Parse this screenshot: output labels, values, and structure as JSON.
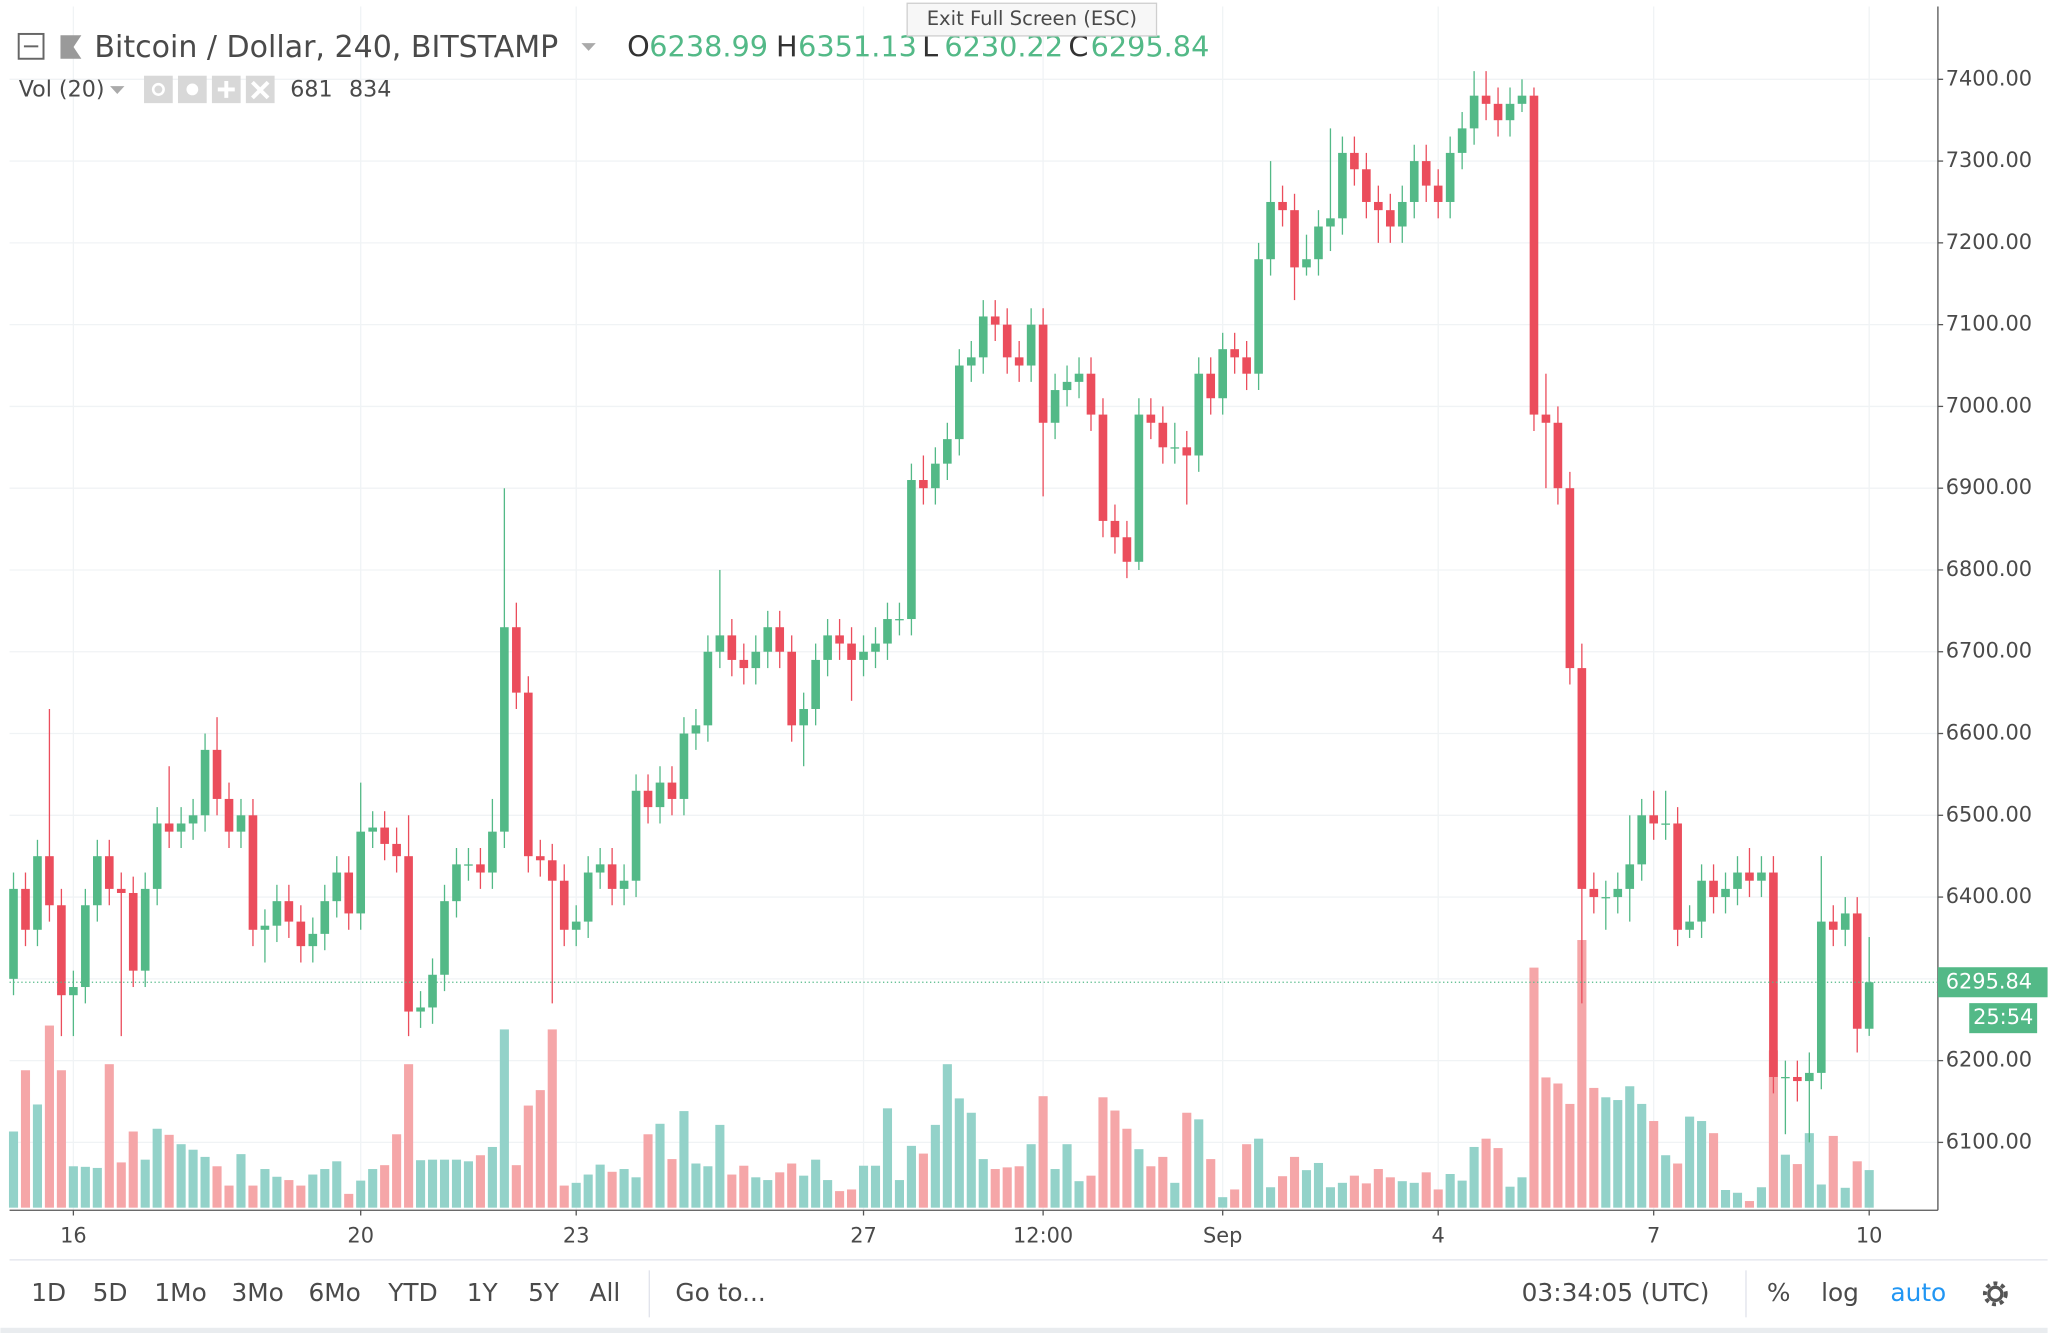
{
  "header": {
    "title": "Bitcoin / Dollar, 240, BITSTAMP",
    "tooltip": "Exit Full Screen (ESC)",
    "ohlc": [
      {
        "key": "O",
        "value": "6238.99"
      },
      {
        "key": "H",
        "value": "6351.13"
      },
      {
        "key": "L",
        "value": "6230.22"
      },
      {
        "key": "C",
        "value": "6295.84"
      }
    ],
    "volume_title": "Vol (20)"
  },
  "chart_data": {
    "type": "candlestick",
    "up_color": "#53b987",
    "down_color": "#eb4d5c",
    "volume_up_color": "#93d2c9",
    "volume_down_color": "#f5a6a8",
    "grid": true,
    "xlim": [
      -0.33,
      160.74
    ],
    "xticks": [
      {
        "value": 5,
        "label": "16"
      },
      {
        "value": 29,
        "label": "20"
      },
      {
        "value": 47,
        "label": "23"
      },
      {
        "value": 71,
        "label": "27"
      },
      {
        "value": 86,
        "label": "12:00"
      },
      {
        "value": 101,
        "label": "Sep"
      },
      {
        "value": 119,
        "label": "4"
      },
      {
        "value": 137,
        "label": "7"
      },
      {
        "value": 155,
        "label": "10"
      }
    ],
    "ylim": [
      6017,
      7489
    ],
    "yticks": [
      {
        "value": 6100,
        "label": "6100.00"
      },
      {
        "value": 6200,
        "label": "6200.00"
      },
      {
        "value": 6300,
        "label": "6300.00"
      },
      {
        "value": 6400,
        "label": "6400.00"
      },
      {
        "value": 6500,
        "label": "6500.00"
      },
      {
        "value": 6600,
        "label": "6600.00"
      },
      {
        "value": 6700,
        "label": "6700.00"
      },
      {
        "value": 6800,
        "label": "6800.00"
      },
      {
        "value": 6900,
        "label": "6900.00"
      },
      {
        "value": 7000,
        "label": "7000.00"
      },
      {
        "value": 7100,
        "label": "7100.00"
      },
      {
        "value": 7200,
        "label": "7200.00"
      },
      {
        "value": 7300,
        "label": "7300.00"
      },
      {
        "value": 7400,
        "label": "7400.00"
      }
    ],
    "open": [
      6300,
      6410,
      6360,
      6450,
      6390,
      6280,
      6290,
      6390,
      6450,
      6410,
      6405,
      6310,
      6410,
      6490,
      6480,
      6490,
      6500,
      6580,
      6520,
      6480,
      6500,
      6360,
      6365,
      6395,
      6370,
      6340,
      6355,
      6395,
      6430,
      6380,
      6480,
      6485,
      6465,
      6450,
      6260,
      6265,
      6305,
      6395,
      6440,
      6440,
      6430,
      6480,
      6730,
      6650,
      6450,
      6445,
      6420,
      6360,
      6370,
      6430,
      6440,
      6410,
      6420,
      6530,
      6510,
      6540,
      6520,
      6600,
      6610,
      6700,
      6720,
      6690,
      6680,
      6700,
      6730,
      6700,
      6610,
      6630,
      6690,
      6720,
      6710,
      6690,
      6700,
      6710,
      6740,
      6740,
      6910,
      6900,
      6930,
      6960,
      7050,
      7060,
      7110,
      7100,
      7060,
      7050,
      7100,
      6980,
      7020,
      7030,
      7040,
      6990,
      6860,
      6840,
      6810,
      6990,
      6980,
      6950,
      6950,
      6940,
      7040,
      7010,
      7070,
      7060,
      7040,
      7180,
      7250,
      7240,
      7170,
      7180,
      7220,
      7230,
      7310,
      7290,
      7250,
      7240,
      7220,
      7250,
      7300,
      7270,
      7250,
      7310,
      7340,
      7380,
      7370,
      7350,
      7370,
      7380,
      6990,
      6980,
      6900,
      6680,
      6410,
      6400,
      6400,
      6410,
      6440,
      6500,
      6490,
      6490,
      6360,
      6370,
      6420,
      6400,
      6410,
      6430,
      6420,
      6430,
      6180,
      6180,
      6175,
      6185,
      6370,
      6360,
      6380,
      6238.99
    ],
    "high": [
      6430,
      6430,
      6470,
      6630,
      6410,
      6310,
      6410,
      6470,
      6470,
      6430,
      6425,
      6430,
      6510,
      6560,
      6510,
      6520,
      6600,
      6620,
      6540,
      6520,
      6520,
      6385,
      6415,
      6415,
      6390,
      6375,
      6415,
      6450,
      6450,
      6540,
      6505,
      6505,
      6485,
      6500,
      6285,
      6325,
      6415,
      6460,
      6460,
      6460,
      6520,
      6900,
      6760,
      6670,
      6470,
      6465,
      6440,
      6390,
      6450,
      6460,
      6460,
      6440,
      6550,
      6550,
      6560,
      6560,
      6620,
      6630,
      6720,
      6800,
      6740,
      6710,
      6720,
      6750,
      6750,
      6720,
      6650,
      6710,
      6740,
      6740,
      6730,
      6720,
      6730,
      6760,
      6760,
      6930,
      6940,
      6950,
      6980,
      7070,
      7080,
      7130,
      7130,
      7120,
      7080,
      7120,
      7120,
      7040,
      7050,
      7060,
      7060,
      7010,
      6880,
      6860,
      7010,
      7010,
      7000,
      6980,
      6970,
      7060,
      7060,
      7090,
      7090,
      7080,
      7200,
      7300,
      7270,
      7260,
      7210,
      7240,
      7340,
      7330,
      7330,
      7310,
      7270,
      7260,
      7270,
      7320,
      7320,
      7290,
      7330,
      7360,
      7410,
      7410,
      7390,
      7390,
      7400,
      7390,
      7040,
      7000,
      6920,
      6710,
      6430,
      6420,
      6430,
      6500,
      6520,
      6530,
      6530,
      6510,
      6390,
      6440,
      6440,
      6430,
      6450,
      6460,
      6450,
      6450,
      6200,
      6200,
      6210,
      6450,
      6390,
      6400,
      6400,
      6351.13
    ],
    "low": [
      6280,
      6340,
      6340,
      6370,
      6230,
      6230,
      6270,
      6370,
      6390,
      6230,
      6290,
      6290,
      6390,
      6460,
      6460,
      6470,
      6480,
      6500,
      6460,
      6460,
      6340,
      6320,
      6345,
      6350,
      6320,
      6320,
      6335,
      6375,
      6360,
      6360,
      6460,
      6445,
      6430,
      6230,
      6240,
      6245,
      6285,
      6375,
      6420,
      6410,
      6410,
      6460,
      6630,
      6430,
      6425,
      6270,
      6340,
      6340,
      6350,
      6410,
      6390,
      6390,
      6400,
      6490,
      6490,
      6500,
      6500,
      6580,
      6590,
      6680,
      6670,
      6660,
      6660,
      6680,
      6680,
      6590,
      6560,
      6610,
      6670,
      6690,
      6640,
      6670,
      6680,
      6690,
      6720,
      6720,
      6880,
      6880,
      6910,
      6940,
      7030,
      7040,
      7080,
      7040,
      7030,
      7030,
      6890,
      6960,
      7000,
      7010,
      6970,
      6840,
      6820,
      6790,
      6800,
      6960,
      6930,
      6930,
      6880,
      6920,
      6990,
      6990,
      7040,
      7020,
      7020,
      7160,
      7220,
      7130,
      7160,
      7160,
      7190,
      7210,
      7270,
      7230,
      7200,
      7200,
      7200,
      7230,
      7250,
      7230,
      7230,
      7290,
      7320,
      7350,
      7330,
      7330,
      7360,
      6970,
      6900,
      6880,
      6660,
      6270,
      6380,
      6360,
      6380,
      6370,
      6420,
      6470,
      6470,
      6340,
      6350,
      6350,
      6380,
      6380,
      6390,
      6400,
      6400,
      6160,
      6110,
      6150,
      6100,
      6165,
      6340,
      6340,
      6210,
      6230.22
    ],
    "close": [
      6410,
      6360,
      6450,
      6390,
      6280,
      6290,
      6390,
      6450,
      6410,
      6405,
      6310,
      6410,
      6490,
      6480,
      6490,
      6500,
      6580,
      6520,
      6480,
      6500,
      6360,
      6365,
      6395,
      6370,
      6340,
      6355,
      6395,
      6430,
      6380,
      6480,
      6485,
      6465,
      6450,
      6260,
      6265,
      6305,
      6395,
      6440,
      6440,
      6430,
      6480,
      6730,
      6650,
      6450,
      6445,
      6420,
      6360,
      6370,
      6430,
      6440,
      6410,
      6420,
      6530,
      6510,
      6540,
      6520,
      6600,
      6610,
      6700,
      6720,
      6690,
      6680,
      6700,
      6730,
      6700,
      6610,
      6630,
      6690,
      6720,
      6710,
      6690,
      6700,
      6710,
      6740,
      6740,
      6910,
      6900,
      6930,
      6960,
      7050,
      7060,
      7110,
      7100,
      7060,
      7050,
      7100,
      6980,
      7020,
      7030,
      7040,
      6990,
      6860,
      6840,
      6810,
      6990,
      6980,
      6950,
      6950,
      6940,
      7040,
      7010,
      7070,
      7060,
      7040,
      7180,
      7250,
      7240,
      7170,
      7180,
      7220,
      7230,
      7310,
      7290,
      7250,
      7240,
      7220,
      7250,
      7300,
      7270,
      7250,
      7310,
      7340,
      7380,
      7370,
      7350,
      7370,
      7380,
      6990,
      6980,
      6900,
      6680,
      6410,
      6400,
      6400,
      6410,
      6440,
      6500,
      6490,
      6490,
      6360,
      6370,
      6420,
      6400,
      6410,
      6430,
      6420,
      6430,
      6180,
      6180,
      6175,
      6185,
      6370,
      6360,
      6380,
      6238.99,
      6295.84
    ],
    "volume": [
      1380,
      2490,
      1870,
      3300,
      2490,
      750,
      740,
      720,
      2600,
      820,
      1380,
      870,
      1430,
      1320,
      1150,
      1050,
      920,
      750,
      400,
      970,
      400,
      700,
      560,
      500,
      400,
      600,
      700,
      840,
      250,
      490,
      700,
      770,
      1330,
      2600,
      860,
      870,
      870,
      870,
      840,
      950,
      1100,
      3230,
      770,
      1850,
      2130,
      3230,
      400,
      450,
      600,
      780,
      650,
      700,
      550,
      1330,
      1520,
      880,
      1750,
      800,
      750,
      1500,
      600,
      760,
      550,
      500,
      640,
      800,
      580,
      870,
      500,
      300,
      330,
      760,
      760,
      1800,
      500,
      1120,
      980,
      1500,
      2600,
      1980,
      1720,
      880,
      700,
      730,
      750,
      1150,
      2020,
      700,
      1150,
      480,
      580,
      2000,
      1760,
      1430,
      1060,
      750,
      920,
      450,
      1720,
      1600,
      880,
      190,
      330,
      1150,
      1250,
      370,
      570,
      920,
      680,
      810,
      370,
      450,
      580,
      440,
      700,
      550,
      480,
      450,
      640,
      330,
      610,
      490,
      1100,
      1250,
      1080,
      380,
      550,
      4350,
      2360,
      2250,
      1880,
      4850,
      2170,
      2000,
      1950,
      2200,
      1880,
      1570,
      950,
      800,
      1650,
      1570,
      1350,
      320,
      270,
      120,
      370,
      2850,
      960,
      790,
      1350,
      420,
      1300,
      360,
      840,
      681
    ],
    "volume_ma": 834,
    "last_price": {
      "value": 6295.84,
      "label": "6295.84"
    },
    "countdown": "25:54"
  },
  "toolbar": {
    "ranges": [
      "1D",
      "5D",
      "1Mo",
      "3Mo",
      "6Mo",
      "YTD",
      "1Y",
      "5Y",
      "All"
    ],
    "goto": "Go to...",
    "clock": "03:34:05 (UTC)",
    "options": [
      "%",
      "log",
      "auto"
    ]
  }
}
